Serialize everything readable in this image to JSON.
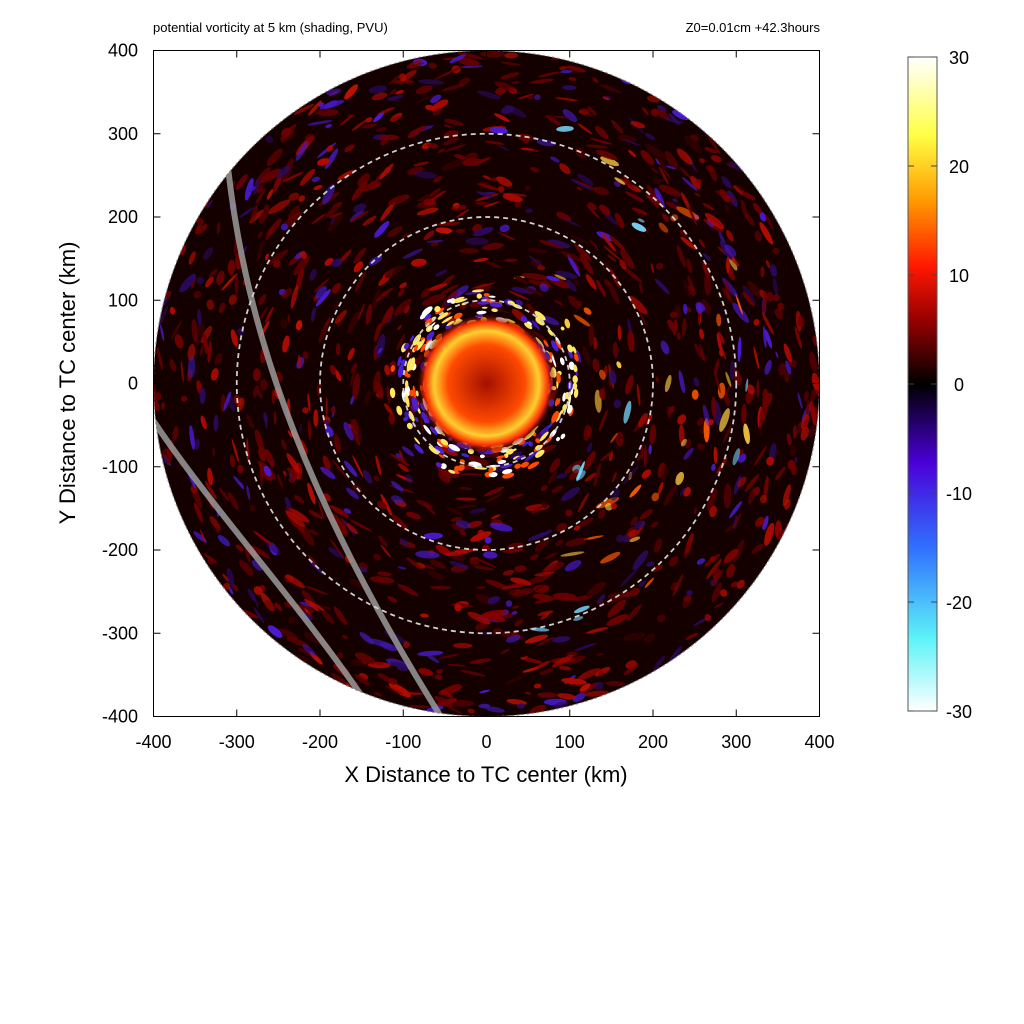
{
  "chart_data": {
    "type": "heatmap",
    "title": "potential vorticity at 5 km (shading, PVU)",
    "subtitle": "Z0=0.01cm  +42.3hours",
    "xlabel": "X Distance to TC center (km)",
    "ylabel": "Y Distance to TC center (km)",
    "xlim": [
      -400,
      400
    ],
    "ylim": [
      -400,
      400
    ],
    "x_ticks": [
      -400,
      -300,
      -200,
      -100,
      0,
      100,
      200,
      300,
      400
    ],
    "y_ticks": [
      -400,
      -300,
      -200,
      -100,
      0,
      100,
      200,
      300,
      400
    ],
    "colorbar": {
      "min": -30,
      "max": 30,
      "ticks": [
        30,
        20,
        10,
        0,
        -10,
        -20,
        -30
      ],
      "colors": [
        "#ffffff",
        "#5ef4f8",
        "#3070ff",
        "#4a00d8",
        "#000000",
        "#9a0000",
        "#ff1800",
        "#ff9a00",
        "#ffff44",
        "#ffffff"
      ]
    },
    "domain_radius_km": 400,
    "range_rings_km": [
      100,
      200,
      300
    ],
    "grid": false
  }
}
